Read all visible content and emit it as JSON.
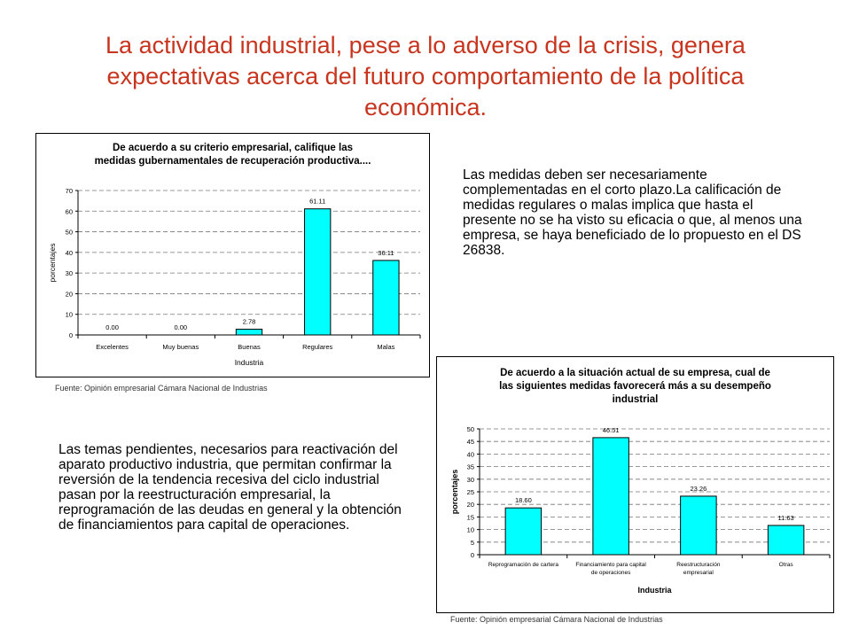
{
  "slide": {
    "title": "La actividad industrial, pese a lo adverso de la crisis, genera expectativas acerca del futuro comportamiento de la política económica.",
    "paragraph_right": "Las medidas deben ser necesariamente complementadas en el corto plazo.La calificación de medidas regulares o malas implica que hasta el presente no se ha visto su eficacia o que, al menos una empresa, se haya beneficiado de lo propuesto en el DS 26838.",
    "paragraph_left": "Las temas pendientes, necesarios para reactivación del aparato productivo industria, que permitan confirmar la reversión de la tendencia recesiva del ciclo industrial pasan por la reestructuración empresarial, la reprogramación de las deudas en general y la obtención de financiamientos para capital de operaciones.",
    "source_1": "Fuente: Opinión empresarial Cámara Nacional de Industrias",
    "source_2": "Fuente: Opinión empresarial Cámara Nacional de Industrias"
  },
  "chart_data": [
    {
      "type": "bar",
      "title": "De acuerdo a su criterio empresarial, califique las medidas gubernamentales de recuperación productiva....",
      "title_lines": [
        "De acuerdo a su criterio empresarial, califique las",
        "medidas gubernamentales de recuperación productiva...."
      ],
      "xlabel": "Industria",
      "ylabel": "porcentajes",
      "categories": [
        "Excelentes",
        "Muy buenas",
        "Buenas",
        "Regulares",
        "Malas"
      ],
      "values": [
        0.0,
        0.0,
        2.78,
        61.11,
        36.11
      ],
      "data_labels": [
        "0.00",
        "0.00",
        "2.78",
        "61.11",
        "36.11"
      ],
      "ylim": [
        0,
        70
      ],
      "yticks": [
        0,
        10,
        20,
        30,
        40,
        50,
        60,
        70
      ],
      "grid": true,
      "bar_color": "#00ffff"
    },
    {
      "type": "bar",
      "title": "De acuerdo a la situación actual de su empresa, cual de las siguientes medidas favorecerá más a su desempeño industrial",
      "title_lines": [
        "De acuerdo a la situación actual de su empresa, cual de",
        "las siguientes medidas favorecerá más a su desempeño",
        "industrial"
      ],
      "xlabel": "Industria",
      "ylabel": "porcentajes",
      "categories": [
        "Reprogramación de cartera",
        "Financiamiento para capital de operaciones",
        "Reestructuración empresarial",
        "Otras"
      ],
      "category_lines": [
        [
          "Reprogramación de cartera"
        ],
        [
          "Financiamiento para capital",
          "de operaciones"
        ],
        [
          "Reestructuración",
          "empresarial"
        ],
        [
          "Otras"
        ]
      ],
      "values": [
        18.6,
        46.51,
        23.26,
        11.63
      ],
      "data_labels": [
        "18.60",
        "46.51",
        "23.26",
        "11.63"
      ],
      "ylim": [
        0,
        50
      ],
      "yticks": [
        0,
        5,
        10,
        15,
        20,
        25,
        30,
        35,
        40,
        45,
        50
      ],
      "grid": true,
      "bar_color": "#00ffff"
    }
  ]
}
